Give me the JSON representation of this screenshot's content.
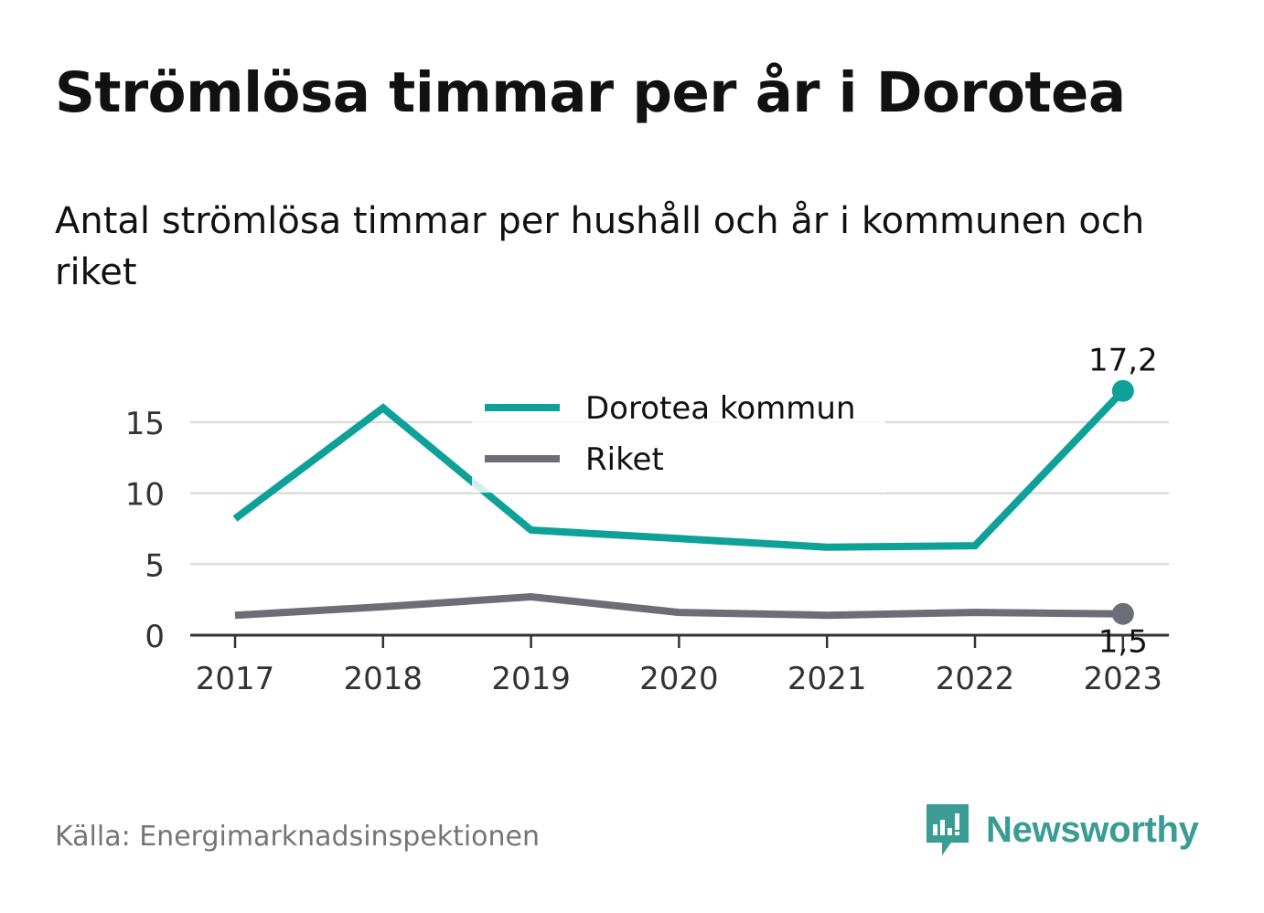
{
  "title": "Strömlösa timmar per år i Dorotea",
  "subtitle": "Antal strömlösa timmar per hushåll och år i kommunen och riket",
  "source": "Källa: Energimarknadsinspektionen",
  "brand": {
    "name": "Newsworthy",
    "color": "#3a9c94",
    "icon": "newsworthy-logo-icon"
  },
  "chart_data": {
    "type": "line",
    "title": "Strömlösa timmar per år i Dorotea",
    "subtitle": "Antal strömlösa timmar per hushåll och år i kommunen och riket",
    "x": [
      "2017",
      "2018",
      "2019",
      "2020",
      "2021",
      "2022",
      "2023"
    ],
    "ylim": [
      0,
      18.5
    ],
    "yticks": [
      0,
      5,
      10,
      15
    ],
    "grid": true,
    "legend": "top-center",
    "series": [
      {
        "name": "Dorotea kommun",
        "color": "#0ea197",
        "values": [
          8.2,
          16.0,
          7.4,
          6.8,
          6.2,
          6.3,
          17.2
        ],
        "end_label": "17,2"
      },
      {
        "name": "Riket",
        "color": "#6d6d75",
        "values": [
          1.4,
          2.0,
          2.7,
          1.6,
          1.4,
          1.6,
          1.5
        ],
        "end_label": "1,5"
      }
    ]
  }
}
